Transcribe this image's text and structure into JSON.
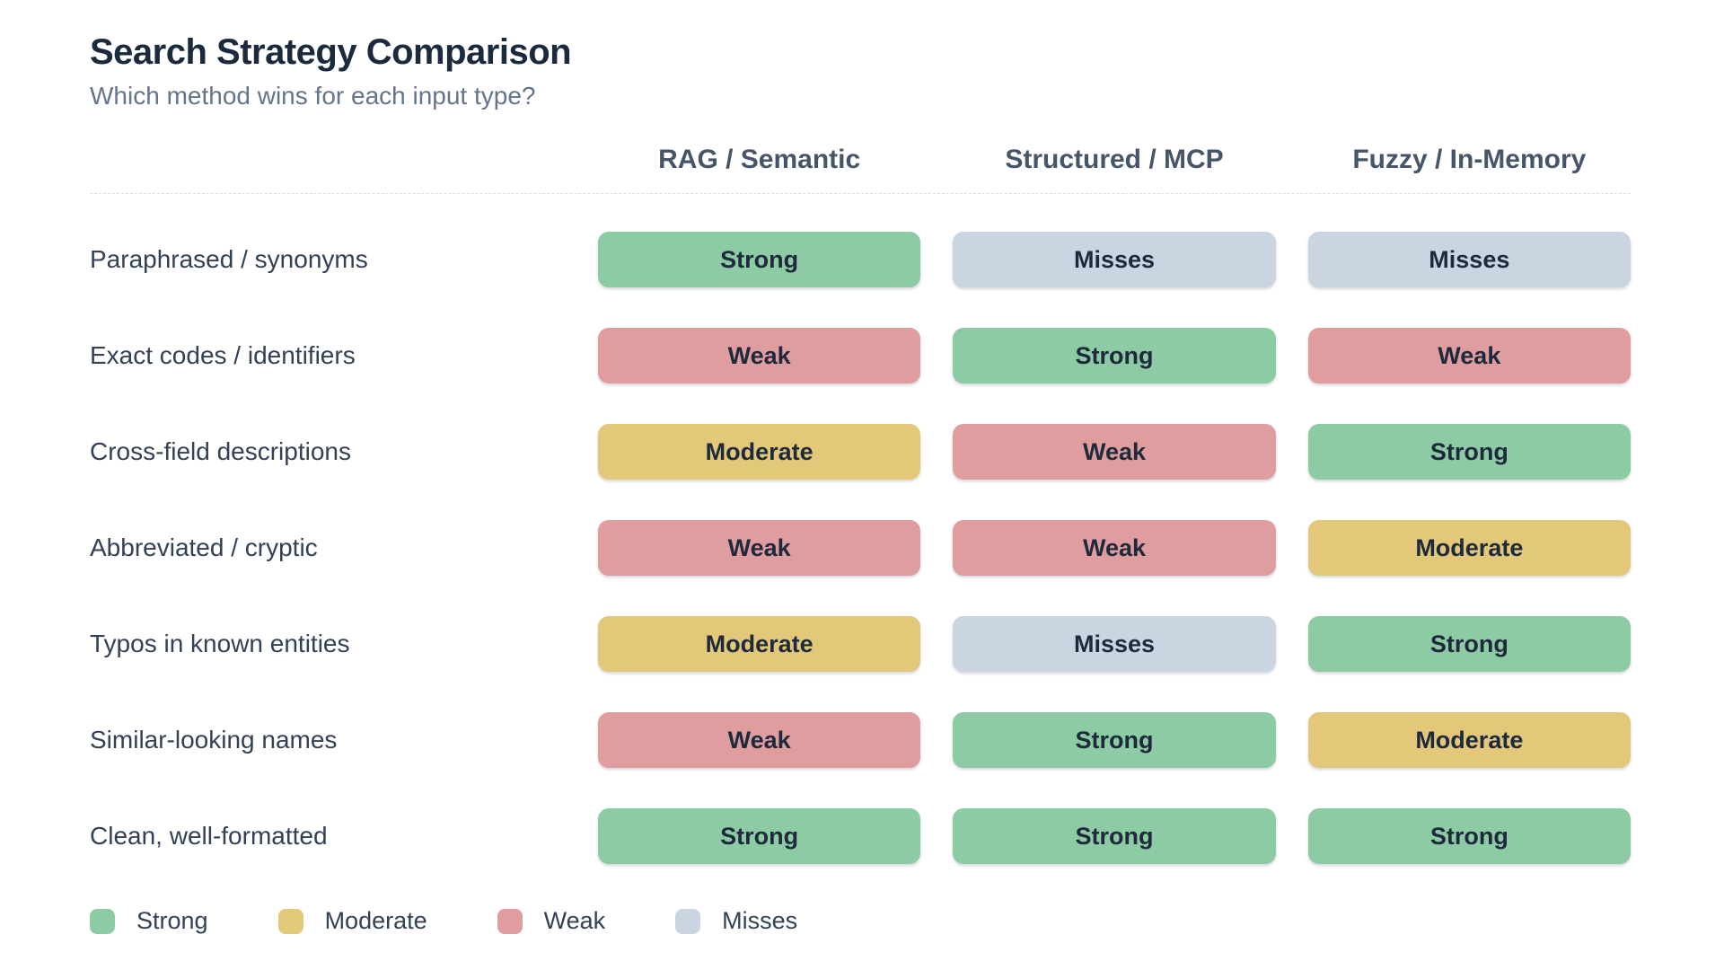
{
  "chart_data": {
    "type": "table",
    "title": "Search Strategy Comparison",
    "subtitle": "Which method wins for each input type?",
    "columns": [
      "RAG / Semantic",
      "Structured / MCP",
      "Fuzzy / In-Memory"
    ],
    "rows": [
      {
        "label": "Paraphrased / synonyms",
        "cells": [
          "Strong",
          "Misses",
          "Misses"
        ]
      },
      {
        "label": "Exact codes / identifiers",
        "cells": [
          "Weak",
          "Strong",
          "Weak"
        ]
      },
      {
        "label": "Cross-field descriptions",
        "cells": [
          "Moderate",
          "Weak",
          "Strong"
        ]
      },
      {
        "label": "Abbreviated / cryptic",
        "cells": [
          "Weak",
          "Weak",
          "Moderate"
        ]
      },
      {
        "label": "Typos in known entities",
        "cells": [
          "Moderate",
          "Misses",
          "Strong"
        ]
      },
      {
        "label": "Similar-looking names",
        "cells": [
          "Weak",
          "Strong",
          "Moderate"
        ]
      },
      {
        "label": "Clean, well-formatted",
        "cells": [
          "Strong",
          "Strong",
          "Strong"
        ]
      }
    ],
    "legend": [
      {
        "label": "Strong",
        "level": "strong"
      },
      {
        "label": "Moderate",
        "level": "moderate"
      },
      {
        "label": "Weak",
        "level": "weak"
      },
      {
        "label": "Misses",
        "level": "misses"
      }
    ],
    "colors": {
      "strong": "#8dcba4",
      "moderate": "#e2c878",
      "weak": "#df9da0",
      "misses": "#cbd5e1"
    }
  }
}
